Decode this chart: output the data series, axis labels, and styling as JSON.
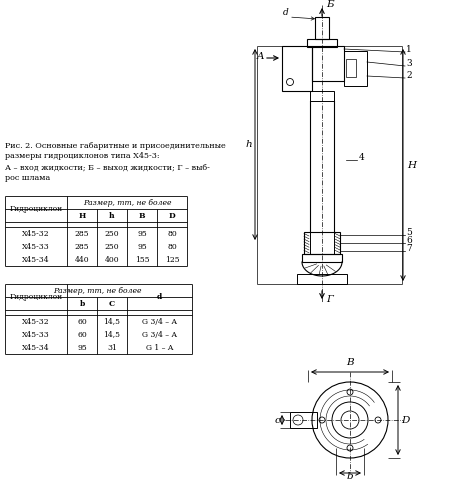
{
  "caption_line1": "Рис. 2. Основные габаритные и присоединительные",
  "caption_line2": "размеры гидроциклонов типа Х45-3:",
  "caption_line3": "А – вход жидкости; Б – выход жидкости; Г – выб-",
  "caption_line4": "рос шлама",
  "table1_size_header": "Размер, mm, не более",
  "table1_col0": "Гидроциклон",
  "table1_subheaders": [
    "H",
    "h",
    "B",
    "D"
  ],
  "table1_data": [
    [
      "X45-32",
      "285",
      "250",
      "95",
      "80"
    ],
    [
      "X45-33",
      "285",
      "250",
      "95",
      "80"
    ],
    [
      "X45-34",
      "440",
      "400",
      "155",
      "125"
    ]
  ],
  "table2_size_header": "Размер, mm, не более",
  "table2_col0": "Гидроциклон",
  "table2_subheaders": [
    "b",
    "C"
  ],
  "table2_col_d": "d",
  "table2_data": [
    [
      "X45-32",
      "60",
      "14,5",
      "G 3/4 – A"
    ],
    [
      "X45-33",
      "60",
      "14,5",
      "G 3/4 – A"
    ],
    [
      "X45-34",
      "95",
      "31",
      "G 1 – A"
    ]
  ]
}
